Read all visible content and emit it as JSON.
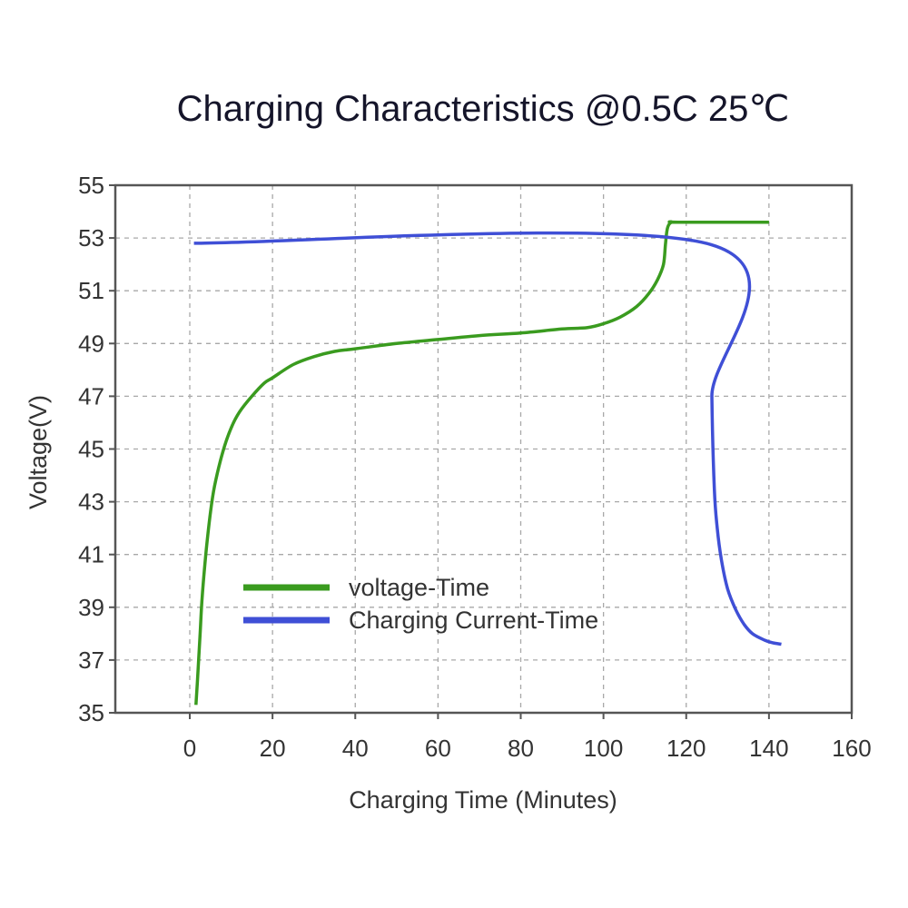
{
  "chart_data": {
    "type": "line",
    "title": "Charging Characteristics @0.5C 25℃",
    "xlabel": "Charging Time (Minutes)",
    "ylabel": "Voltage(V)",
    "xlim": [
      -18,
      160
    ],
    "ylim": [
      35,
      55
    ],
    "x_ticks": [
      0,
      20,
      40,
      60,
      80,
      100,
      120,
      140,
      160
    ],
    "y_ticks": [
      35,
      37,
      39,
      41,
      43,
      45,
      47,
      49,
      51,
      53,
      55
    ],
    "grid": true,
    "legend_position": "lower-left",
    "series": [
      {
        "name": "voltage-Time",
        "color": "#3a9b1f",
        "points": [
          [
            1.5,
            35.3
          ],
          [
            2,
            36.6
          ],
          [
            2.5,
            38.0
          ],
          [
            3,
            39.4
          ],
          [
            4,
            41.2
          ],
          [
            5,
            42.6
          ],
          [
            6,
            43.6
          ],
          [
            8,
            44.9
          ],
          [
            10,
            45.8
          ],
          [
            12,
            46.4
          ],
          [
            15,
            47.0
          ],
          [
            18,
            47.5
          ],
          [
            20,
            47.7
          ],
          [
            25,
            48.2
          ],
          [
            30,
            48.5
          ],
          [
            35,
            48.7
          ],
          [
            40,
            48.8
          ],
          [
            50,
            49.0
          ],
          [
            60,
            49.15
          ],
          [
            70,
            49.3
          ],
          [
            80,
            49.4
          ],
          [
            90,
            49.55
          ],
          [
            96,
            49.6
          ],
          [
            100,
            49.75
          ],
          [
            104,
            50.0
          ],
          [
            108,
            50.4
          ],
          [
            111,
            50.9
          ],
          [
            113,
            51.4
          ],
          [
            114.5,
            52.0
          ],
          [
            115,
            52.8
          ],
          [
            115.5,
            53.4
          ],
          [
            116.5,
            53.6
          ],
          [
            118,
            53.6
          ],
          [
            140,
            53.6
          ]
        ]
      },
      {
        "name": "Charging Current-Time",
        "color": "#3f4fd6",
        "points": [
          [
            1,
            52.8
          ],
          [
            126,
            52.75
          ],
          [
            126.2,
            47.0
          ],
          [
            126.8,
            43.5
          ],
          [
            127.5,
            42.0
          ],
          [
            128.5,
            40.8
          ],
          [
            130,
            39.7
          ],
          [
            132,
            38.9
          ],
          [
            134,
            38.35
          ],
          [
            136,
            38.0
          ],
          [
            139,
            37.75
          ],
          [
            141,
            37.65
          ],
          [
            143,
            37.6
          ]
        ]
      }
    ]
  }
}
